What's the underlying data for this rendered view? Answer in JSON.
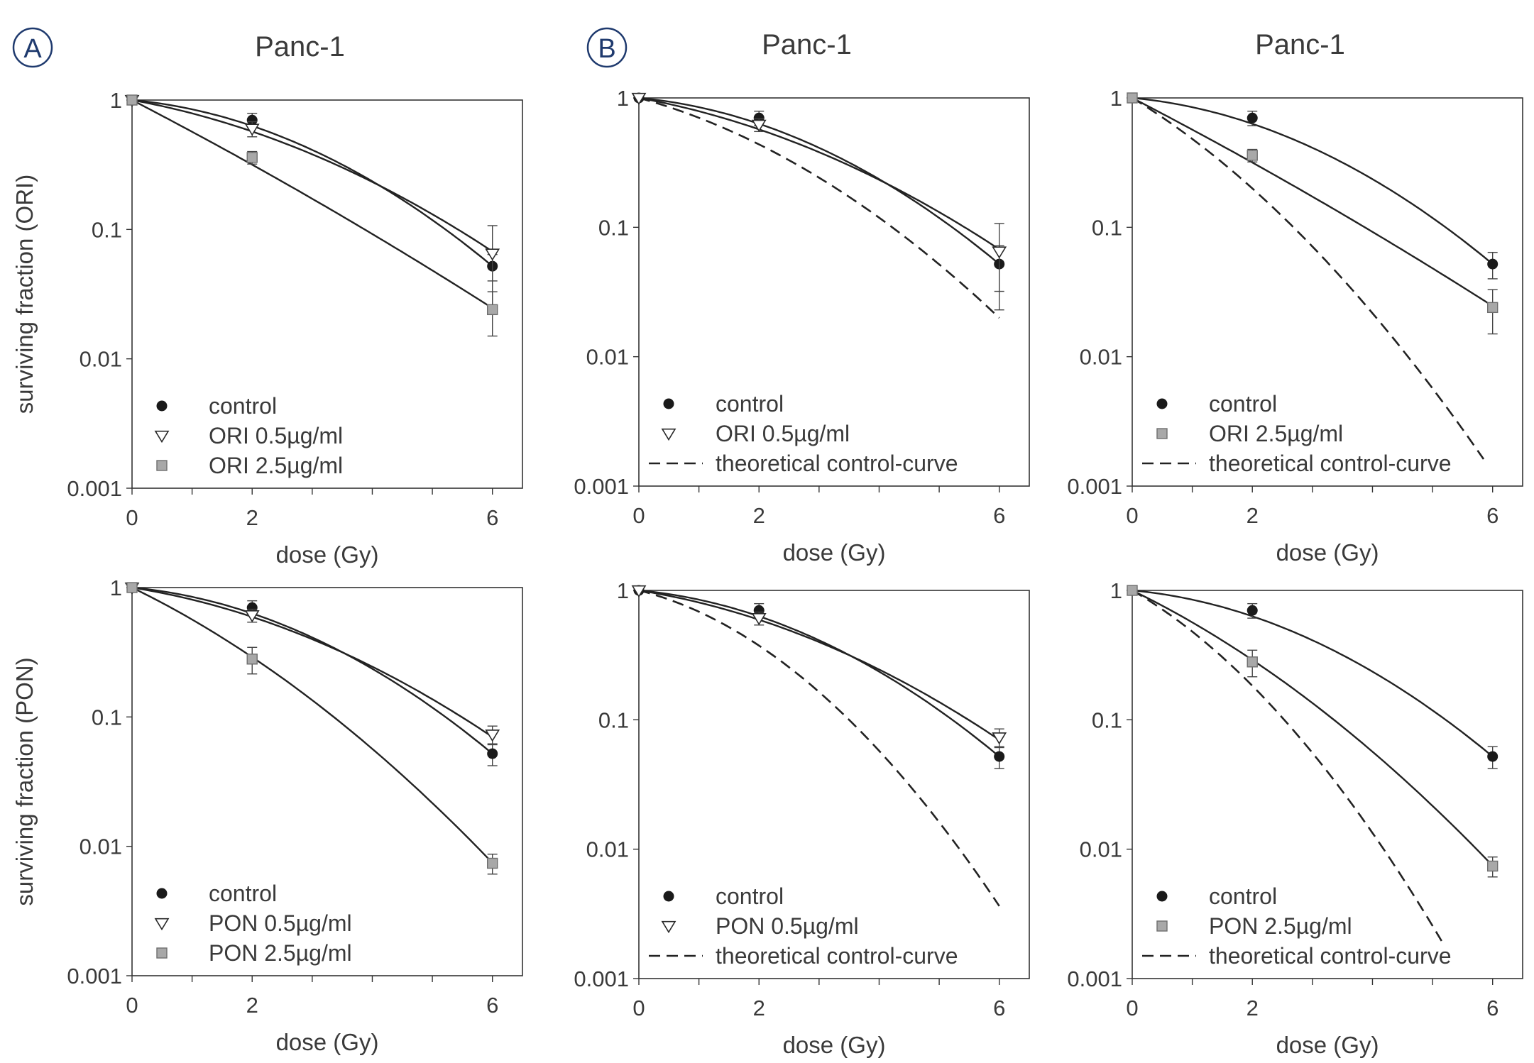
{
  "panel_labels": [
    "A",
    "B"
  ],
  "legend_labels": {
    "control": "control",
    "ori_05": "ORI 0.5µg/ml",
    "ori_25": "ORI 2.5µg/ml",
    "pon_05": "PON 0.5µg/ml",
    "pon_25": "PON 2.5µg/ml",
    "theo": "theoretical control-curve"
  },
  "chart_data": [
    {
      "id": "r0c0",
      "type": "scatter",
      "yscale": "log",
      "title": "Panc-1",
      "xlabel": "dose (Gy)",
      "ylabel": "surviving fraction (ORI)",
      "xlim": [
        0,
        6.5
      ],
      "ylim": [
        0.001,
        1
      ],
      "xticks": [
        0,
        2,
        6
      ],
      "yticks": [
        0.001,
        0.01,
        0.1,
        1
      ],
      "yticklabels": [
        "0.001",
        "0.01",
        "0.1",
        "1"
      ],
      "legend_position": "bottom-left",
      "series": [
        {
          "key": "control",
          "marker": "circle",
          "alpha": 0.099,
          "beta": 0.0656,
          "x": [
            0,
            2,
            6
          ],
          "y": [
            1,
            0.7,
            0.052
          ],
          "err": [
            0,
            0.09,
            0.012
          ]
        },
        {
          "key": "ori_05",
          "marker": "triangle",
          "alpha": 0.195,
          "beta": 0.0423,
          "x": [
            0,
            2,
            6
          ],
          "y": [
            1,
            0.6,
            0.065
          ],
          "err": [
            0,
            0.08,
            0.042
          ]
        },
        {
          "key": "ori_25",
          "marker": "square",
          "alpha": 0.554,
          "beta": 0.0105,
          "x": [
            0,
            2,
            6
          ],
          "y": [
            1,
            0.36,
            0.024
          ],
          "err": [
            0,
            0.04,
            0.009
          ]
        }
      ]
    },
    {
      "id": "r0c1",
      "type": "scatter",
      "yscale": "log",
      "title": "Panc-1",
      "xlabel": "dose (Gy)",
      "ylabel": "",
      "xlim": [
        0,
        6.5
      ],
      "ylim": [
        0.001,
        1
      ],
      "xticks": [
        0,
        2,
        6
      ],
      "yticks": [
        0.001,
        0.01,
        0.1,
        1
      ],
      "yticklabels": [
        "0.001",
        "0.01",
        "0.1",
        "1"
      ],
      "legend_position": "bottom-left",
      "series": [
        {
          "key": "control",
          "marker": "circle",
          "alpha": 0.099,
          "beta": 0.0656,
          "x": [
            0,
            2,
            6
          ],
          "y": [
            1,
            0.7,
            0.052
          ],
          "err": [
            0,
            0.09,
            0.02
          ]
        },
        {
          "key": "ori_05",
          "marker": "triangle",
          "alpha": 0.195,
          "beta": 0.0423,
          "x": [
            0,
            2,
            6
          ],
          "y": [
            1,
            0.62,
            0.065
          ],
          "err": [
            0,
            0.07,
            0.042
          ]
        },
        {
          "key": "theo",
          "line": "dashed",
          "alpha": 0.294,
          "beta": 0.0597,
          "x_end": 6
        }
      ]
    },
    {
      "id": "r0c2",
      "type": "scatter",
      "yscale": "log",
      "title": "Panc-1",
      "xlabel": "dose (Gy)",
      "ylabel": "",
      "xlim": [
        0,
        6.5
      ],
      "ylim": [
        0.001,
        1
      ],
      "xticks": [
        0,
        2,
        6
      ],
      "yticks": [
        0.001,
        0.01,
        0.1,
        1
      ],
      "yticklabels": [
        "0.001",
        "0.01",
        "0.1",
        "1"
      ],
      "legend_position": "bottom-left",
      "series": [
        {
          "key": "control",
          "marker": "circle",
          "alpha": 0.099,
          "beta": 0.0656,
          "x": [
            0,
            2,
            6
          ],
          "y": [
            1,
            0.7,
            0.052
          ],
          "err": [
            0,
            0.09,
            0.012
          ]
        },
        {
          "key": "ori_25",
          "marker": "square",
          "alpha": 0.554,
          "beta": 0.0105,
          "x": [
            0,
            2,
            6
          ],
          "y": [
            1,
            0.36,
            0.024
          ],
          "err": [
            0,
            0.04,
            0.009
          ]
        },
        {
          "key": "theo",
          "line": "dashed",
          "alpha": 0.653,
          "beta": 0.0762,
          "x_end": 5.85
        }
      ]
    },
    {
      "id": "r1c0",
      "type": "scatter",
      "yscale": "log",
      "title": "",
      "xlabel": "dose (Gy)",
      "ylabel": "surviving fraction (PON)",
      "xlim": [
        0,
        6.5
      ],
      "ylim": [
        0.001,
        1
      ],
      "xticks": [
        0,
        2,
        6
      ],
      "yticks": [
        0.001,
        0.01,
        0.1,
        1
      ],
      "yticklabels": [
        "0.001",
        "0.01",
        "0.1",
        "1"
      ],
      "legend_position": "bottom-left",
      "series": [
        {
          "key": "control",
          "marker": "circle",
          "alpha": 0.099,
          "beta": 0.0656,
          "x": [
            0,
            2,
            6
          ],
          "y": [
            1,
            0.7,
            0.052
          ],
          "err": [
            0,
            0.09,
            0.01
          ]
        },
        {
          "key": "pon_05",
          "marker": "triangle",
          "alpha": 0.17,
          "beta": 0.0455,
          "x": [
            0,
            2,
            6
          ],
          "y": [
            1,
            0.61,
            0.073
          ],
          "err": [
            0,
            0.07,
            0.012
          ]
        },
        {
          "key": "pon_25",
          "marker": "square",
          "alpha": 0.52,
          "beta": 0.0494,
          "x": [
            0,
            2,
            6
          ],
          "y": [
            1,
            0.28,
            0.0074
          ],
          "err": [
            0,
            0.065,
            0.0013
          ]
        }
      ]
    },
    {
      "id": "r1c1",
      "type": "scatter",
      "yscale": "log",
      "title": "",
      "xlabel": "dose (Gy)",
      "ylabel": "",
      "xlim": [
        0,
        6.5
      ],
      "ylim": [
        0.001,
        1
      ],
      "xticks": [
        0,
        2,
        6
      ],
      "yticks": [
        0.001,
        0.01,
        0.1,
        1
      ],
      "yticklabels": [
        "0.001",
        "0.01",
        "0.1",
        "1"
      ],
      "legend_position": "bottom-left",
      "series": [
        {
          "key": "control",
          "marker": "circle",
          "alpha": 0.099,
          "beta": 0.0656,
          "x": [
            0,
            2,
            6
          ],
          "y": [
            1,
            0.7,
            0.052
          ],
          "err": [
            0,
            0.09,
            0.01
          ]
        },
        {
          "key": "pon_05",
          "marker": "triangle",
          "alpha": 0.17,
          "beta": 0.0455,
          "x": [
            0,
            2,
            6
          ],
          "y": [
            1,
            0.61,
            0.073
          ],
          "err": [
            0,
            0.07,
            0.012
          ]
        },
        {
          "key": "theo",
          "line": "dashed",
          "alpha": 0.269,
          "beta": 0.1112,
          "x_end": 6
        }
      ]
    },
    {
      "id": "r1c2",
      "type": "scatter",
      "yscale": "log",
      "title": "",
      "xlabel": "dose (Gy)",
      "ylabel": "",
      "xlim": [
        0,
        6.5
      ],
      "ylim": [
        0.001,
        1
      ],
      "xticks": [
        0,
        2,
        6
      ],
      "yticks": [
        0.001,
        0.01,
        0.1,
        1
      ],
      "yticklabels": [
        "0.001",
        "0.01",
        "0.1",
        "1"
      ],
      "legend_position": "bottom-left",
      "series": [
        {
          "key": "control",
          "marker": "circle",
          "alpha": 0.099,
          "beta": 0.0656,
          "x": [
            0,
            2,
            6
          ],
          "y": [
            1,
            0.7,
            0.052
          ],
          "err": [
            0,
            0.09,
            0.01
          ]
        },
        {
          "key": "pon_25",
          "marker": "square",
          "alpha": 0.52,
          "beta": 0.0494,
          "x": [
            0,
            2,
            6
          ],
          "y": [
            1,
            0.28,
            0.0074
          ],
          "err": [
            0,
            0.065,
            0.0013
          ]
        },
        {
          "key": "theo",
          "line": "dashed",
          "alpha": 0.619,
          "beta": 0.115,
          "x_end": 5.15
        }
      ]
    }
  ]
}
